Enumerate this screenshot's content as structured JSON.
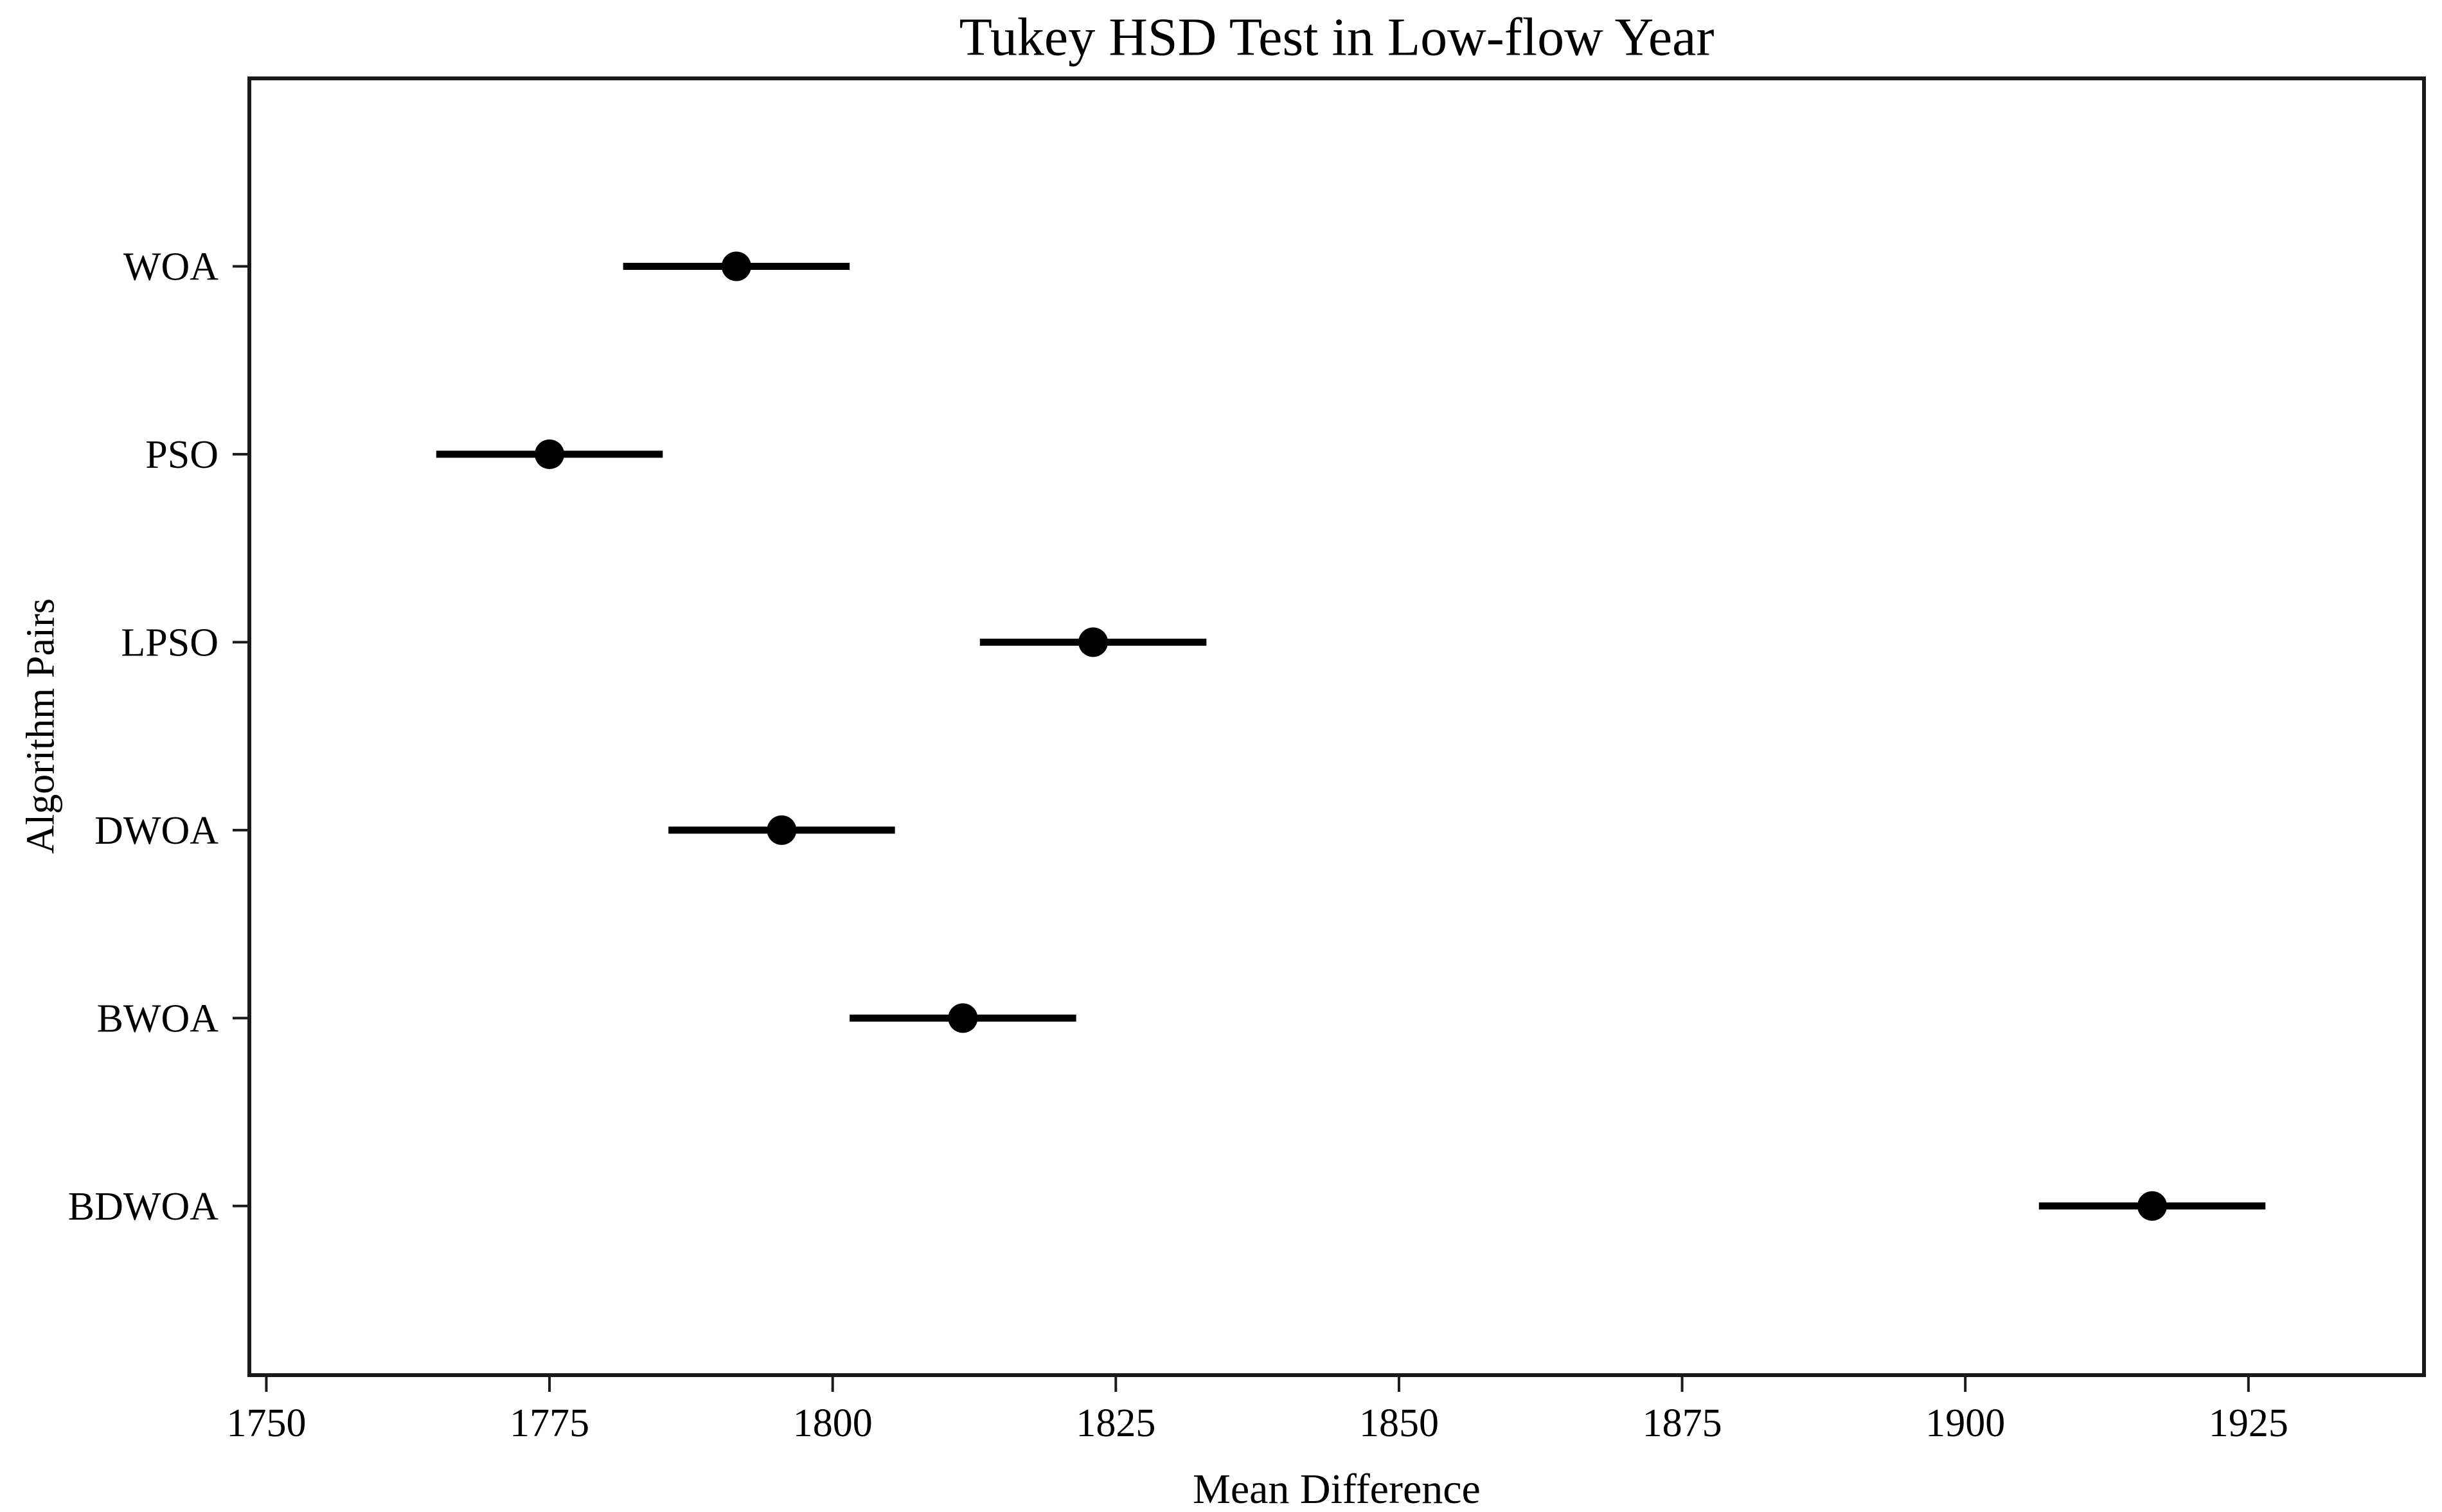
{
  "figure": {
    "background_color": "#ffffff",
    "text_color": "#000000",
    "spine_color": "#1a1a1a"
  },
  "chart_data": {
    "type": "scatter",
    "subtype": "horizontal-errorbar",
    "title": "Tukey HSD Test in Low-flow Year",
    "xlabel": "Mean Difference",
    "ylabel": "Algorithm Pairs",
    "xlim": [
      1748.5,
      1940.5
    ],
    "ylim": [
      0.1,
      7.0
    ],
    "xticks": [
      1750,
      1775,
      1800,
      1825,
      1850,
      1875,
      1900,
      1925
    ],
    "grid": false,
    "legend": false,
    "marker_color": "#000000",
    "errorbar_color": "#000000",
    "categories": [
      "WOA",
      "PSO",
      "LPSO",
      "DWOA",
      "BWOA",
      "BDWOA"
    ],
    "series": [
      {
        "label": "WOA",
        "y_pos": 6,
        "mean": 1791.5,
        "ci_low": 1781.5,
        "ci_high": 1801.5
      },
      {
        "label": "PSO",
        "y_pos": 5,
        "mean": 1775.0,
        "ci_low": 1765.0,
        "ci_high": 1785.0
      },
      {
        "label": "LPSO",
        "y_pos": 4,
        "mean": 1823.0,
        "ci_low": 1813.0,
        "ci_high": 1833.0
      },
      {
        "label": "DWOA",
        "y_pos": 3,
        "mean": 1795.5,
        "ci_low": 1785.5,
        "ci_high": 1805.5
      },
      {
        "label": "BWOA",
        "y_pos": 2,
        "mean": 1811.5,
        "ci_low": 1801.5,
        "ci_high": 1821.5
      },
      {
        "label": "BDWOA",
        "y_pos": 1,
        "mean": 1916.5,
        "ci_low": 1906.5,
        "ci_high": 1926.5
      }
    ]
  }
}
